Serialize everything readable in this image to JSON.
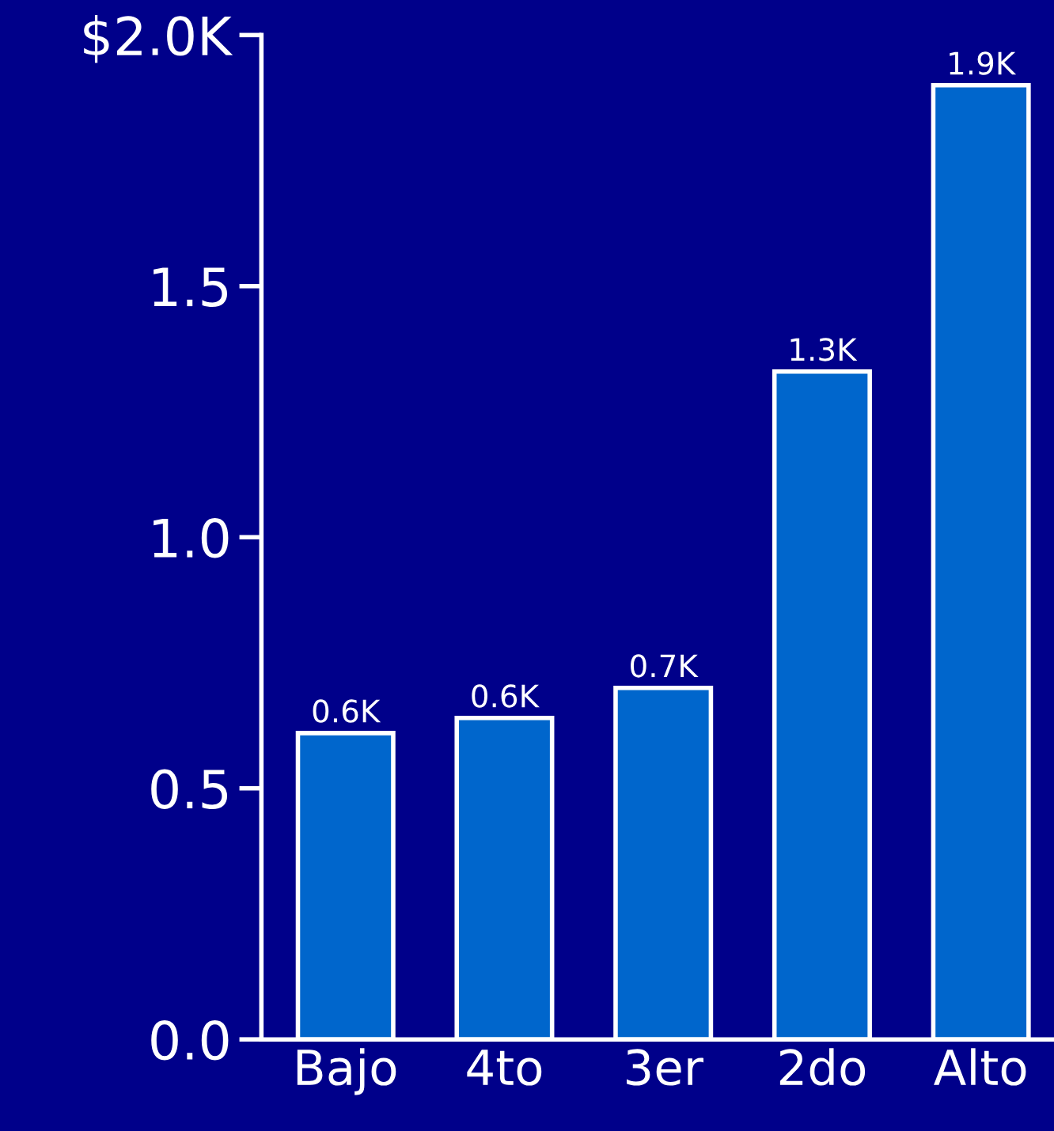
{
  "chart_data": {
    "type": "bar",
    "categories": [
      "Bajo",
      "4to",
      "3er",
      "2do",
      "Alto"
    ],
    "values": [
      0.61,
      0.64,
      0.7,
      1.33,
      1.9
    ],
    "value_labels": [
      "0.6K",
      "0.6K",
      "0.7K",
      "1.3K",
      "1.9K"
    ],
    "color": "#0066cc",
    "ylim": [
      0,
      2
    ],
    "yticks": [
      {
        "value": 0,
        "label": "0.0"
      },
      0.5,
      {
        "value": 1,
        "label": "1.0"
      },
      1.5,
      {
        "value": 2,
        "label": "$2.0K"
      }
    ],
    "grid": false,
    "legend": false
  }
}
